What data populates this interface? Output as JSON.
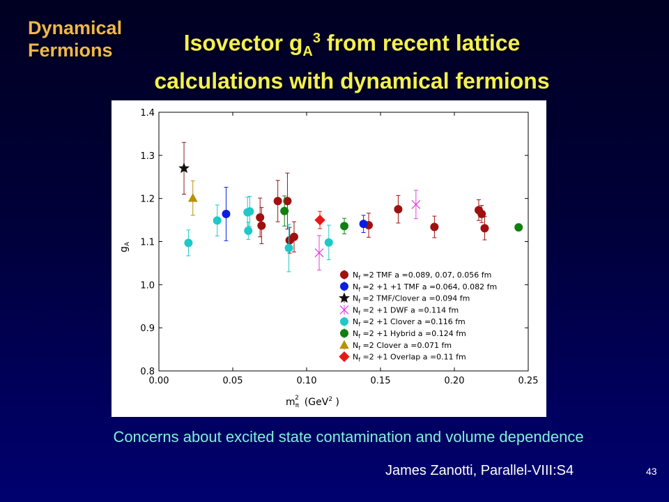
{
  "slide": {
    "corner_label_line1": "Dynamical",
    "corner_label_line2": "Fermions",
    "title_line1_pre": "Isovector g",
    "title_sub": "A",
    "title_sup": "3",
    "title_line1_post": " from recent lattice",
    "title_line2": "calculations with dynamical fermions",
    "footnote": "Concerns about excited state contamination and volume dependence",
    "credit": "James Zanotti, Parallel-VIII:S4",
    "page_number": "43"
  },
  "chart_data": {
    "type": "scatter",
    "xlabel_main": "m",
    "xlabel_sub": "π",
    "xlabel_sup": "2",
    "xlabel_unit_pre": "(GeV",
    "xlabel_unit_sup": "2",
    "xlabel_unit_post": " )",
    "ylabel_main": "g",
    "ylabel_sub": "A",
    "xlim": [
      0.0,
      0.25
    ],
    "ylim": [
      0.8,
      1.4
    ],
    "xticks": [
      "0.00",
      "0.05",
      "0.10",
      "0.15",
      "0.20",
      "0.25"
    ],
    "yticks": [
      "0.8",
      "0.9",
      "1.0",
      "1.1",
      "1.2",
      "1.3",
      "1.4"
    ],
    "legend_position": "lower-right",
    "series": [
      {
        "legend_pre": "N",
        "legend_sub": "f",
        "legend_post": " =2 TMF a =0.089, 0.07, 0.056 fm",
        "marker": "circle",
        "color": "#a01010",
        "points": [
          {
            "x": 0.0685,
            "y": 1.156,
            "err": 0.045
          },
          {
            "x": 0.0695,
            "y": 1.137,
            "err": 0.042
          },
          {
            "x": 0.0805,
            "y": 1.194,
            "err": 0.048
          },
          {
            "x": 0.0885,
            "y": 1.103,
            "err": 0.03
          },
          {
            "x": 0.0915,
            "y": 1.111,
            "err": 0.035
          },
          {
            "x": 0.087,
            "y": 1.194,
            "err": 0.065
          },
          {
            "x": 0.142,
            "y": 1.138,
            "err": 0.028
          },
          {
            "x": 0.162,
            "y": 1.175,
            "err": 0.032
          },
          {
            "x": 0.1865,
            "y": 1.134,
            "err": 0.025
          },
          {
            "x": 0.2165,
            "y": 1.173,
            "err": 0.024
          },
          {
            "x": 0.2185,
            "y": 1.164,
            "err": 0.02
          },
          {
            "x": 0.2205,
            "y": 1.131,
            "err": 0.027
          }
        ]
      },
      {
        "legend_pre": "N",
        "legend_sub": "f",
        "legend_post": " =2 +1 +1 TMF a =0.064, 0.082 fm",
        "marker": "circle",
        "color": "#0a1ee0",
        "points": [
          {
            "x": 0.0455,
            "y": 1.164,
            "err": 0.062
          },
          {
            "x": 0.1385,
            "y": 1.141,
            "err": 0.02
          }
        ]
      },
      {
        "legend_pre": "N",
        "legend_sub": "f",
        "legend_post": " =2 TMF/Clover a =0.094 fm",
        "marker": "star",
        "color": "#8b1a1a",
        "points": [
          {
            "x": 0.017,
            "y": 1.27,
            "err": 0.06
          }
        ]
      },
      {
        "legend_pre": "N",
        "legend_sub": "f",
        "legend_post": " =2 +1 DWF a =0.114 fm",
        "marker": "x",
        "color": "#e040e0",
        "points": [
          {
            "x": 0.1085,
            "y": 1.074,
            "err": 0.04
          },
          {
            "x": 0.174,
            "y": 1.186,
            "err": 0.033
          }
        ]
      },
      {
        "legend_pre": "N",
        "legend_sub": "f",
        "legend_post": " =2 +1 Clover a =0.116 fm",
        "marker": "circle",
        "color": "#20c8c8",
        "points": [
          {
            "x": 0.02,
            "y": 1.097,
            "err": 0.03
          },
          {
            "x": 0.0395,
            "y": 1.149,
            "err": 0.036
          },
          {
            "x": 0.06,
            "y": 1.168,
            "err": 0.035
          },
          {
            "x": 0.0615,
            "y": 1.17,
            "err": 0.035
          },
          {
            "x": 0.0605,
            "y": 1.125,
            "err": 0.02
          },
          {
            "x": 0.088,
            "y": 1.085,
            "err": 0.055
          },
          {
            "x": 0.115,
            "y": 1.098,
            "err": 0.04
          }
        ]
      },
      {
        "legend_pre": "N",
        "legend_sub": "f",
        "legend_post": " =2 +1 Hybrid a =0.124 fm",
        "marker": "circle",
        "color": "#108010",
        "points": [
          {
            "x": 0.085,
            "y": 1.171,
            "err": 0.035
          },
          {
            "x": 0.1255,
            "y": 1.136,
            "err": 0.018
          },
          {
            "x": 0.2435,
            "y": 1.133,
            "err": 0.008
          }
        ]
      },
      {
        "legend_pre": "N",
        "legend_sub": "f",
        "legend_post": " =2 Clover a =0.071 fm",
        "marker": "triangle",
        "color": "#b8900a",
        "points": [
          {
            "x": 0.023,
            "y": 1.201,
            "err": 0.04
          }
        ]
      },
      {
        "legend_pre": "N",
        "legend_sub": "f",
        "legend_post": " =2 +1 Overlap a =0.11 fm",
        "marker": "diamond",
        "color": "#e81818",
        "points": [
          {
            "x": 0.109,
            "y": 1.15,
            "err": 0.02
          }
        ]
      }
    ]
  }
}
